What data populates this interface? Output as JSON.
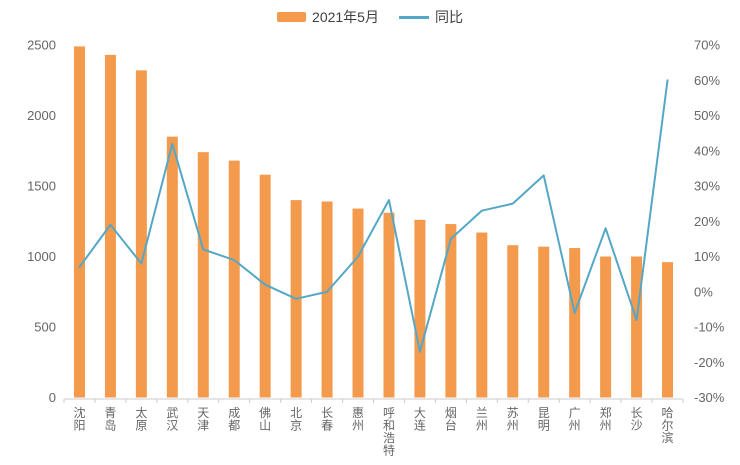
{
  "legend": {
    "series1_label": "2021年5月",
    "series2_label": "同比"
  },
  "colors": {
    "bar": "#F49A4D",
    "line": "#55A7C6",
    "axis_text": "#666666",
    "axis_line": "#CBCBCB",
    "legend_text": "#404040"
  },
  "chart_data": {
    "type": "bar+line combo",
    "title": "",
    "legend_position": "top",
    "grid": false,
    "categories": [
      "沈阳",
      "青岛",
      "太原",
      "武汉",
      "天津",
      "成都",
      "佛山",
      "北京",
      "长春",
      "惠州",
      "呼和浩特",
      "大连",
      "烟台",
      "兰州",
      "苏州",
      "昆明",
      "广州",
      "郑州",
      "长沙",
      "哈尔滨"
    ],
    "series": [
      {
        "name": "2021年5月",
        "type": "bar",
        "axis": "left",
        "values": [
          2490,
          2430,
          2320,
          1850,
          1740,
          1680,
          1580,
          1400,
          1390,
          1340,
          1310,
          1260,
          1230,
          1170,
          1080,
          1070,
          1060,
          1000,
          1000,
          960
        ]
      },
      {
        "name": "同比",
        "type": "line",
        "axis": "right",
        "unit": "%",
        "values": [
          7,
          19,
          8,
          42,
          12,
          9,
          2,
          -2,
          0,
          10,
          26,
          -17,
          15,
          23,
          25,
          33,
          -6,
          18,
          -8,
          60
        ]
      }
    ],
    "left_axis": {
      "min": 0,
      "max": 2500,
      "step": 500,
      "ticks": [
        "2500",
        "2000",
        "1500",
        "1000",
        "500",
        "0"
      ]
    },
    "right_axis": {
      "min": -30,
      "max": 70,
      "step": 10,
      "ticks": [
        "70%",
        "60%",
        "50%",
        "40%",
        "30%",
        "20%",
        "10%",
        "0%",
        "-10%",
        "-20%",
        "-30%"
      ]
    }
  }
}
